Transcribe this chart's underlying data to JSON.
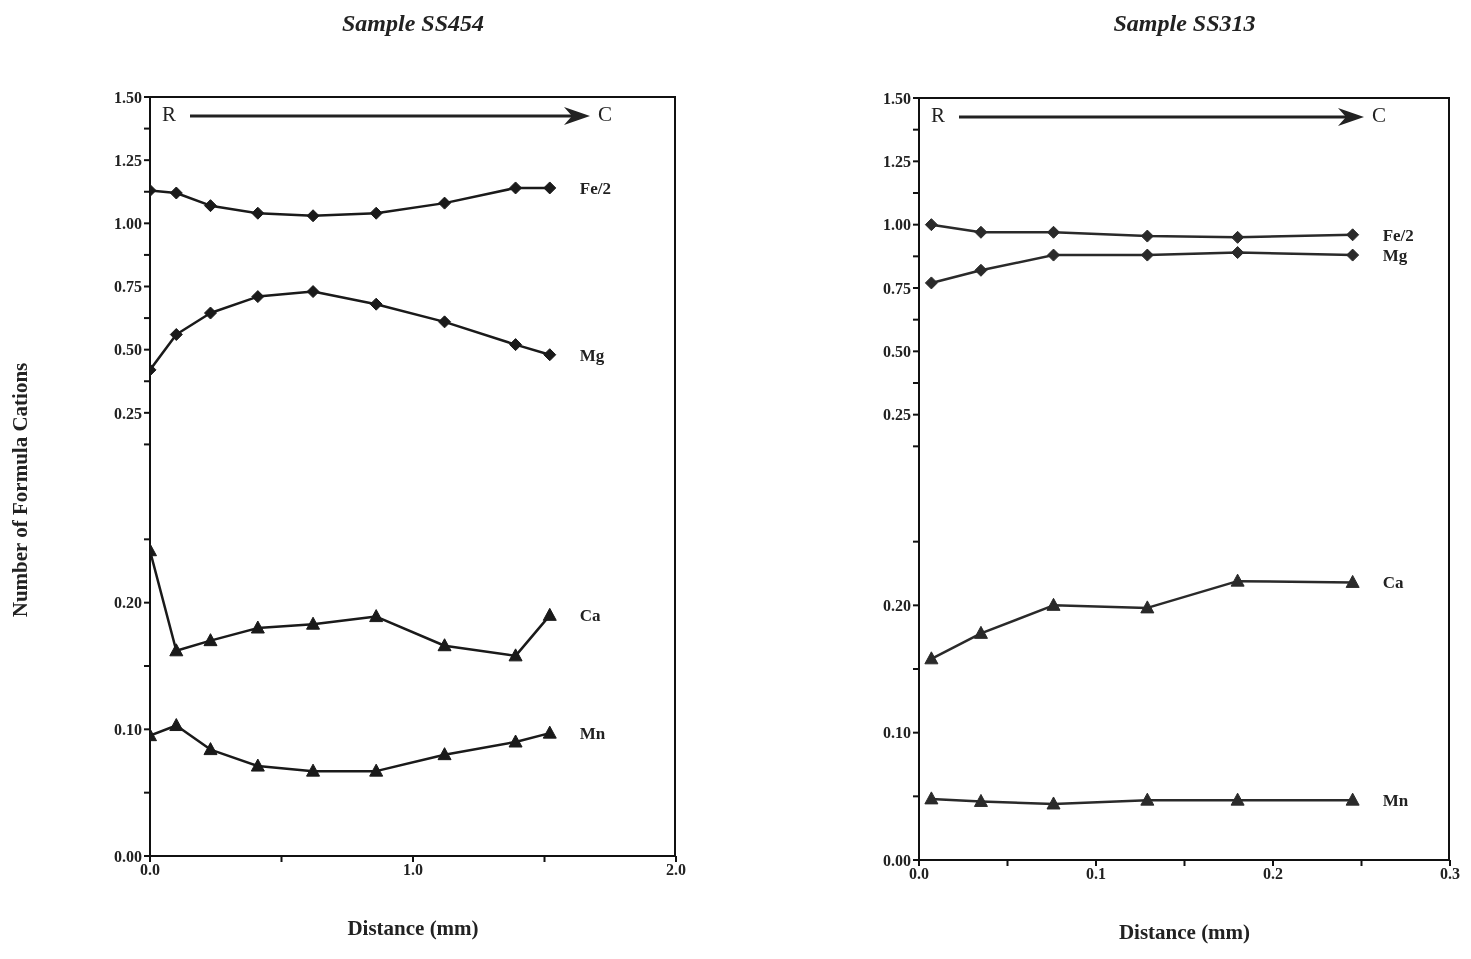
{
  "chart_data": [
    {
      "type": "line",
      "title": "Sample SS454",
      "ylabel": "Number of Formula Cations",
      "annotations": [
        "R",
        "C"
      ],
      "marker": "diamond",
      "tick_labels": "y",
      "xlim": [
        0,
        2
      ],
      "ylim": [
        0,
        1.5
      ],
      "yticks": [
        {
          "value": 0.125,
          "label": null
        },
        {
          "value": 0.25,
          "label": "0.25"
        },
        {
          "value": 0.375,
          "label": null
        },
        {
          "value": 0.5,
          "label": "0.50"
        },
        {
          "value": 0.625,
          "label": null
        },
        {
          "value": 0.75,
          "label": "0.75"
        },
        {
          "value": 0.875,
          "label": null
        },
        {
          "value": 1,
          "label": "1.00"
        },
        {
          "value": 1.125,
          "label": null
        },
        {
          "value": 1.25,
          "label": "1.25"
        },
        {
          "value": 1.375,
          "label": null
        },
        {
          "value": 1.5,
          "label": "1.50"
        }
      ],
      "series": [
        {
          "name": "Fe/2",
          "color": "#1a1a1a",
          "x": [
            0,
            0.1,
            0.23,
            0.41,
            0.62,
            0.86,
            1.12,
            1.39,
            1.52
          ],
          "values": [
            1.13,
            1.12,
            1.07,
            1.04,
            1.03,
            1.04,
            1.08,
            1.14,
            1.14
          ]
        },
        {
          "name": "Mg",
          "color": "#1a1a1a",
          "x": [
            0,
            0.1,
            0.23,
            0.41,
            0.62,
            0.86,
            1.12,
            1.39,
            1.52
          ],
          "values": [
            0.42,
            0.56,
            0.645,
            0.71,
            0.73,
            0.68,
            0.61,
            0.52,
            0.48
          ]
        }
      ]
    },
    {
      "type": "line",
      "xlabel": "Distance (mm)",
      "marker": "triangle",
      "xlim": [
        0,
        2
      ],
      "xticks": [
        {
          "value": 0,
          "label": "0.0"
        },
        {
          "value": 0.5,
          "label": null
        },
        {
          "value": 1,
          "label": "1.0"
        },
        {
          "value": 1.5,
          "label": null
        },
        {
          "value": 2,
          "label": "2.0"
        }
      ],
      "ylim": [
        0,
        0.3
      ],
      "yticks": [
        {
          "value": 0,
          "label": "0.00"
        },
        {
          "value": 0.05,
          "label": null
        },
        {
          "value": 0.1,
          "label": "0.10"
        },
        {
          "value": 0.15,
          "label": null
        },
        {
          "value": 0.2,
          "label": "0.20"
        },
        {
          "value": 0.25,
          "label": null
        }
      ],
      "series": [
        {
          "name": "Ca",
          "color": "#1a1a1a",
          "x": [
            0,
            0.1,
            0.23,
            0.41,
            0.62,
            0.86,
            1.12,
            1.39,
            1.52
          ],
          "values": [
            0.241,
            0.162,
            0.17,
            0.18,
            0.183,
            0.189,
            0.166,
            0.158,
            0.19
          ]
        },
        {
          "name": "Mn",
          "color": "#1a1a1a",
          "x": [
            0,
            0.1,
            0.23,
            0.41,
            0.62,
            0.86,
            1.12,
            1.39,
            1.52
          ],
          "values": [
            0.095,
            0.103,
            0.084,
            0.071,
            0.067,
            0.067,
            0.08,
            0.09,
            0.097
          ]
        }
      ]
    },
    {
      "type": "line",
      "title": "Sample SS313",
      "annotations": [
        "R",
        "C"
      ],
      "marker": "diamond",
      "tick_labels": "y",
      "xlim": [
        0,
        0.3
      ],
      "ylim": [
        0,
        1.5
      ],
      "yticks": [
        {
          "value": 0.125,
          "label": null
        },
        {
          "value": 0.25,
          "label": "0.25"
        },
        {
          "value": 0.375,
          "label": null
        },
        {
          "value": 0.5,
          "label": "0.50"
        },
        {
          "value": 0.625,
          "label": null
        },
        {
          "value": 0.75,
          "label": "0.75"
        },
        {
          "value": 0.875,
          "label": null
        },
        {
          "value": 1,
          "label": "1.00"
        },
        {
          "value": 1.125,
          "label": null
        },
        {
          "value": 1.25,
          "label": "1.25"
        },
        {
          "value": 1.375,
          "label": null
        },
        {
          "value": 1.5,
          "label": "1.50"
        }
      ],
      "series": [
        {
          "name": "Fe/2",
          "color": "#2a2a2a",
          "x": [
            0.007,
            0.035,
            0.076,
            0.129,
            0.18,
            0.245
          ],
          "values": [
            1.0,
            0.97,
            0.97,
            0.955,
            0.95,
            0.96
          ]
        },
        {
          "name": "Mg",
          "color": "#2a2a2a",
          "x": [
            0.007,
            0.035,
            0.076,
            0.129,
            0.18,
            0.245
          ],
          "values": [
            0.77,
            0.82,
            0.88,
            0.88,
            0.89,
            0.88
          ]
        }
      ]
    },
    {
      "type": "line",
      "xlabel": "Distance (mm)",
      "marker": "triangle",
      "xlim": [
        0,
        0.3
      ],
      "xticks": [
        {
          "value": 0,
          "label": "0.0"
        },
        {
          "value": 0.05,
          "label": null
        },
        {
          "value": 0.1,
          "label": "0.1"
        },
        {
          "value": 0.15,
          "label": null
        },
        {
          "value": 0.2,
          "label": "0.2"
        },
        {
          "value": 0.25,
          "label": null
        },
        {
          "value": 0.3,
          "label": "0.3"
        }
      ],
      "ylim": [
        0,
        0.3
      ],
      "yticks": [
        {
          "value": 0,
          "label": "0.00"
        },
        {
          "value": 0.05,
          "label": null
        },
        {
          "value": 0.1,
          "label": "0.10"
        },
        {
          "value": 0.15,
          "label": null
        },
        {
          "value": 0.2,
          "label": "0.20"
        },
        {
          "value": 0.25,
          "label": null
        }
      ],
      "series": [
        {
          "name": "Ca",
          "color": "#2a2a2a",
          "x": [
            0.007,
            0.035,
            0.076,
            0.129,
            0.18,
            0.245
          ],
          "values": [
            0.158,
            0.178,
            0.2,
            0.198,
            0.219,
            0.218
          ]
        },
        {
          "name": "Mn",
          "color": "#2a2a2a",
          "x": [
            0.007,
            0.035,
            0.076,
            0.129,
            0.18,
            0.245
          ],
          "values": [
            0.048,
            0.046,
            0.044,
            0.047,
            0.047,
            0.047
          ]
        }
      ]
    }
  ]
}
